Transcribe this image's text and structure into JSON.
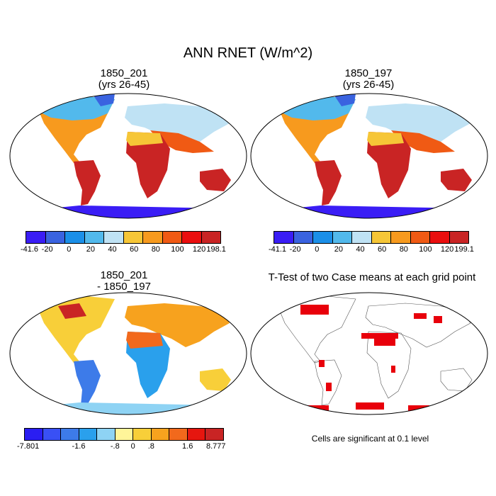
{
  "title": "ANN RNET (W/m^2)",
  "panels": [
    {
      "title_line1": "1850_201",
      "title_line2": "(yrs 26-45)",
      "colorbar": {
        "labels": [
          "-41.6",
          "-20",
          "0",
          "20",
          "40",
          "60",
          "80",
          "100",
          "120",
          "198.1"
        ],
        "colors": [
          "#3a1df5",
          "#3a63e0",
          "#1b8fe8",
          "#52b9ec",
          "#bfe2f4",
          "#f6c637",
          "#f79a1e",
          "#f05a14",
          "#ea0e0e",
          "#c92424"
        ]
      }
    },
    {
      "title_line1": "1850_197",
      "title_line2": "(yrs 26-45)",
      "colorbar": {
        "labels": [
          "-41.1",
          "-20",
          "0",
          "20",
          "40",
          "60",
          "80",
          "100",
          "120",
          "199.1"
        ],
        "colors": [
          "#3a1df5",
          "#3a63e0",
          "#1b8fe8",
          "#52b9ec",
          "#bfe2f4",
          "#f6c637",
          "#f79a1e",
          "#f05a14",
          "#ea0e0e",
          "#c92424"
        ]
      }
    },
    {
      "title_line1": "1850_201",
      "title_line2": "- 1850_197",
      "colorbar": {
        "labels": [
          "-7.801",
          "-1.6",
          "-.8",
          "0",
          ".8",
          "1.6",
          "8.777"
        ],
        "colors": [
          "#2a1ef2",
          "#3950f5",
          "#3d7be9",
          "#2aa0ec",
          "#8ed3f4",
          "#fff599",
          "#f8cf39",
          "#f7a21e",
          "#f2691c",
          "#e6160f",
          "#c92424"
        ]
      }
    },
    {
      "title": "T-Test of two Case means at each grid point",
      "note": "Cells are significant at 0.1 level",
      "sig_color": "#e8000b"
    }
  ]
}
